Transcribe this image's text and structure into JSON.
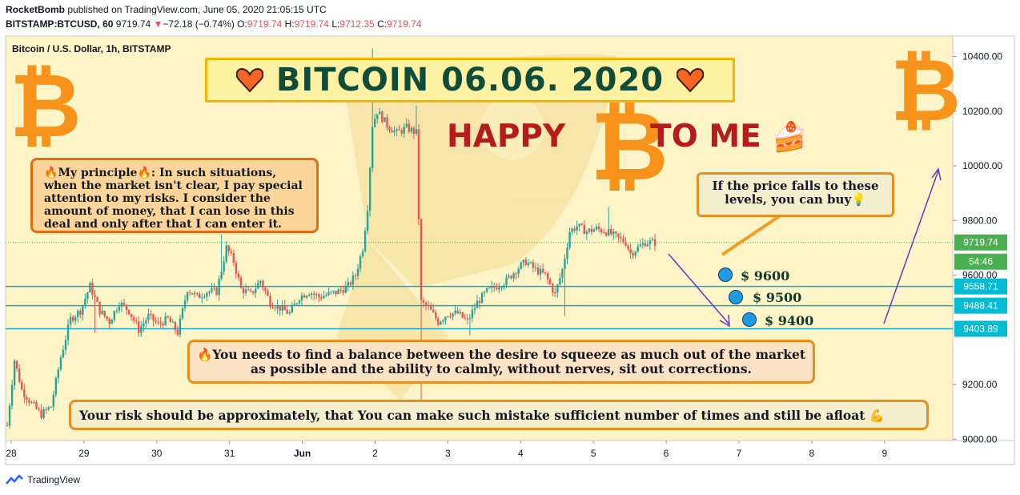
{
  "header": {
    "author": "RocketBomb",
    "published_text": "published on TradingView.com, June 05, 2020 21:05:15 UTC",
    "symbol_line": "BITSTAMP:BTCUSD, 60",
    "last": "9719.74",
    "change_arrow": "▼",
    "change": "−72.18 (−0.74%)",
    "o_label": "O:",
    "o": "9719.74",
    "h_label": "H:",
    "h": "9719.74",
    "l_label": "L:",
    "l": "9712.35",
    "c_label": "C:",
    "c": "9719.74"
  },
  "chart_data": {
    "type": "candlestick",
    "instrument": "Bitcoin / U.S. Dollar, 1h, BITSTAMP",
    "x_tick_labels": [
      "28",
      "29",
      "30",
      "31",
      "Jun",
      "2",
      "3",
      "4",
      "5",
      "6",
      "7",
      "8",
      "9"
    ],
    "y_tick_labels": [
      "10400.00",
      "10200.00",
      "10000.00",
      "9800.00",
      "9600.00",
      "9200.00",
      "9000.00"
    ],
    "ylim": [
      8995,
      10475
    ],
    "last_price_label": "9719.74",
    "countdown_label": "54:46",
    "horizontal_levels": [
      {
        "label": "9558.71",
        "value": 9558.71
      },
      {
        "label": "9488.41",
        "value": 9488.41
      },
      {
        "label": "9403.89",
        "value": 9403.89
      }
    ],
    "price_path": [
      {
        "t": 0,
        "p": 9050
      },
      {
        "t": 3,
        "p": 9290
      },
      {
        "t": 6,
        "p": 9180
      },
      {
        "t": 10,
        "p": 9130
      },
      {
        "t": 14,
        "p": 9090
      },
      {
        "t": 18,
        "p": 9120
      },
      {
        "t": 22,
        "p": 9300
      },
      {
        "t": 26,
        "p": 9440
      },
      {
        "t": 30,
        "p": 9470
      },
      {
        "t": 34,
        "p": 9560
      },
      {
        "t": 38,
        "p": 9470
      },
      {
        "t": 42,
        "p": 9430
      },
      {
        "t": 46,
        "p": 9500
      },
      {
        "t": 50,
        "p": 9470
      },
      {
        "t": 54,
        "p": 9400
      },
      {
        "t": 58,
        "p": 9450
      },
      {
        "t": 62,
        "p": 9420
      },
      {
        "t": 66,
        "p": 9440
      },
      {
        "t": 70,
        "p": 9390
      },
      {
        "t": 74,
        "p": 9550
      },
      {
        "t": 78,
        "p": 9520
      },
      {
        "t": 82,
        "p": 9540
      },
      {
        "t": 86,
        "p": 9540
      },
      {
        "t": 90,
        "p": 9700
      },
      {
        "t": 93,
        "p": 9650
      },
      {
        "t": 96,
        "p": 9550
      },
      {
        "t": 100,
        "p": 9530
      },
      {
        "t": 104,
        "p": 9580
      },
      {
        "t": 108,
        "p": 9500
      },
      {
        "t": 112,
        "p": 9480
      },
      {
        "t": 116,
        "p": 9460
      },
      {
        "t": 120,
        "p": 9520
      },
      {
        "t": 124,
        "p": 9540
      },
      {
        "t": 128,
        "p": 9520
      },
      {
        "t": 132,
        "p": 9530
      },
      {
        "t": 136,
        "p": 9540
      },
      {
        "t": 140,
        "p": 9560
      },
      {
        "t": 143,
        "p": 9600
      },
      {
        "t": 146,
        "p": 9700
      },
      {
        "t": 148,
        "p": 9850
      },
      {
        "t": 150,
        "p": 10150
      },
      {
        "t": 152,
        "p": 10200
      },
      {
        "t": 156,
        "p": 10150
      },
      {
        "t": 160,
        "p": 10120
      },
      {
        "t": 164,
        "p": 10140
      },
      {
        "t": 168,
        "p": 10120
      },
      {
        "t": 170,
        "p": 9500
      },
      {
        "t": 173,
        "p": 9480
      },
      {
        "t": 177,
        "p": 9430
      },
      {
        "t": 181,
        "p": 9460
      },
      {
        "t": 185,
        "p": 9460
      },
      {
        "t": 189,
        "p": 9430
      },
      {
        "t": 193,
        "p": 9500
      },
      {
        "t": 197,
        "p": 9540
      },
      {
        "t": 201,
        "p": 9560
      },
      {
        "t": 205,
        "p": 9580
      },
      {
        "t": 209,
        "p": 9620
      },
      {
        "t": 213,
        "p": 9650
      },
      {
        "t": 217,
        "p": 9620
      },
      {
        "t": 221,
        "p": 9600
      },
      {
        "t": 225,
        "p": 9530
      },
      {
        "t": 228,
        "p": 9620
      },
      {
        "t": 231,
        "p": 9760
      },
      {
        "t": 234,
        "p": 9780
      },
      {
        "t": 238,
        "p": 9760
      },
      {
        "t": 242,
        "p": 9770
      },
      {
        "t": 246,
        "p": 9760
      },
      {
        "t": 250,
        "p": 9740
      },
      {
        "t": 254,
        "p": 9720
      },
      {
        "t": 256,
        "p": 9680
      },
      {
        "t": 259,
        "p": 9700
      },
      {
        "t": 262,
        "p": 9720
      },
      {
        "t": 266,
        "p": 9719.74
      }
    ],
    "projection_levels": [
      "$ 9600",
      "$ 9500",
      "$ 9400"
    ]
  },
  "annotations": {
    "title_text": "BITCOIN 06.06. 2020",
    "happy": "HAPPY",
    "to_me": "TO ME",
    "cake": "🍰",
    "principle_fire": "🔥",
    "principle_label": "My principle",
    "principle_text": ": In such situations, when the market isn't clear, I pay special attention to my risks. I consider the amount of money, that I can lose in this deal and only after that I can enter it.",
    "buy_text": "If the price falls to these levels, you can buy",
    "bulb": "💡",
    "level_1": "$ 9600",
    "level_2": "$ 9500",
    "level_3": "$ 9400",
    "balance_fire": "🔥",
    "balance_text": "You needs to find a balance between the desire to squeeze as much out of the market as possible and the ability to calmly, without nerves, sit out corrections.",
    "risk_text": "Your risk should be approximately, that You can make such  mistake sufficient number of times and still be afloat",
    "muscle": "💪"
  },
  "colors": {
    "up": "#26a69a",
    "down": "#ef5350",
    "level_line": "#1ba8c9",
    "accent_orange": "#f7931a",
    "arrow": "#5b3cc4",
    "last_price_bg": "#4caf50",
    "level_label_bg": "#00bcd4"
  },
  "footer": {
    "brand": "TradingView"
  },
  "icons": [
    "heart-icon",
    "bitcoin-logo-icon",
    "tradingview-logo-icon",
    "fire-icon",
    "bulb-icon",
    "cake-icon",
    "muscle-icon"
  ]
}
